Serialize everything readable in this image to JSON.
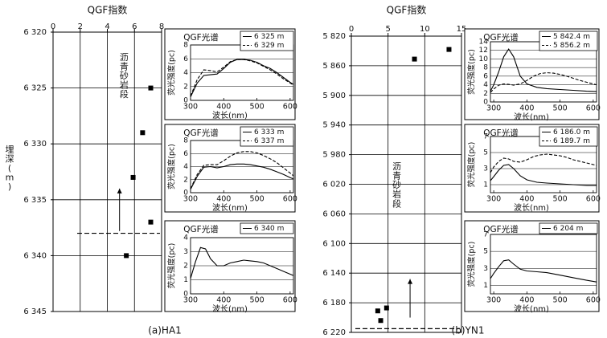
{
  "figure": {
    "ylabel_left": "埋深(m)",
    "annotation_arrow_label": "沥青砂岩段",
    "panels": [
      {
        "id": "HA1",
        "caption": "(a)HA1",
        "main": {
          "title": "QGF指数",
          "x_ticks": [
            "0",
            "2",
            "4",
            "6",
            "8"
          ],
          "x_range": [
            0,
            8
          ],
          "y_ticks": [
            "6 320",
            "6 325",
            "6 330",
            "6 335",
            "6 340",
            "6 345"
          ],
          "y_range": [
            6320,
            6345
          ],
          "points": [
            {
              "x": 7.2,
              "y": 6325.0
            },
            {
              "x": 6.6,
              "y": 6329.0
            },
            {
              "x": 5.9,
              "y": 6333.0
            },
            {
              "x": 7.2,
              "y": 6337.0
            },
            {
              "x": 5.4,
              "y": 6340.0
            }
          ],
          "dashed_depth": 6338.0,
          "arrow": {
            "x": 4.9,
            "from_depth": 6337.8,
            "to_depth": 6334.0
          }
        },
        "spectra": [
          {
            "title": "QGF光谱",
            "ylabel": "荧光强度(pc)",
            "xlabel": "波长(nm)",
            "x_ticks": [
              "300",
              "400",
              "500",
              "600"
            ],
            "x_range": [
              300,
              610
            ],
            "y_ticks": [
              "0",
              "2",
              "4",
              "6",
              "8"
            ],
            "y_range": [
              0,
              8
            ],
            "series": [
              {
                "name": "6 325 m",
                "dash": false,
                "x": [
                  300,
                  320,
                  340,
                  360,
                  380,
                  400,
                  420,
                  440,
                  460,
                  480,
                  500,
                  520,
                  540,
                  560,
                  580,
                  600,
                  610
                ],
                "y": [
                  0.5,
                  2.5,
                  3.6,
                  3.7,
                  3.8,
                  4.6,
                  5.5,
                  5.9,
                  5.9,
                  5.8,
                  5.5,
                  5.0,
                  4.6,
                  4.0,
                  3.3,
                  2.6,
                  2.3
                ]
              },
              {
                "name": "6 329 m",
                "dash": true,
                "x": [
                  300,
                  320,
                  340,
                  360,
                  380,
                  400,
                  420,
                  440,
                  460,
                  480,
                  500,
                  520,
                  540,
                  560,
                  580,
                  600,
                  610
                ],
                "y": [
                  0.6,
                  3.0,
                  4.4,
                  4.3,
                  4.1,
                  4.8,
                  5.6,
                  5.9,
                  5.9,
                  5.7,
                  5.4,
                  4.9,
                  4.4,
                  3.8,
                  3.1,
                  2.5,
                  2.2
                ]
              }
            ]
          },
          {
            "title": "QGF光谱",
            "ylabel": "荧光强度(pc)",
            "xlabel": "波长(nm)",
            "x_ticks": [
              "300",
              "400",
              "500",
              "600"
            ],
            "x_range": [
              300,
              610
            ],
            "y_ticks": [
              "0",
              "2",
              "4",
              "6",
              "8"
            ],
            "y_range": [
              0,
              8
            ],
            "series": [
              {
                "name": "6 333 m",
                "dash": false,
                "x": [
                  300,
                  320,
                  340,
                  360,
                  380,
                  400,
                  420,
                  440,
                  460,
                  480,
                  500,
                  520,
                  540,
                  560,
                  580,
                  600,
                  610
                ],
                "y": [
                  0.5,
                  2.5,
                  3.9,
                  4.0,
                  3.8,
                  4.0,
                  4.3,
                  4.4,
                  4.4,
                  4.3,
                  4.1,
                  3.9,
                  3.6,
                  3.2,
                  2.8,
                  2.3,
                  2.1
                ]
              },
              {
                "name": "6 337 m",
                "dash": true,
                "x": [
                  300,
                  320,
                  340,
                  360,
                  380,
                  400,
                  420,
                  440,
                  460,
                  480,
                  500,
                  520,
                  540,
                  560,
                  580,
                  600,
                  610
                ],
                "y": [
                  0.6,
                  2.8,
                  4.2,
                  4.3,
                  4.3,
                  4.9,
                  5.6,
                  6.1,
                  6.3,
                  6.3,
                  6.1,
                  5.7,
                  5.2,
                  4.6,
                  3.8,
                  3.0,
                  2.6
                ]
              }
            ]
          },
          {
            "title": "QGF光谱",
            "ylabel": "荧光强度(pc)",
            "xlabel": "波长(nm)",
            "x_ticks": [
              "300",
              "400",
              "500",
              "600"
            ],
            "x_range": [
              300,
              610
            ],
            "y_ticks": [
              "0",
              "1",
              "2",
              "3",
              "4"
            ],
            "y_range": [
              0,
              4
            ],
            "series": [
              {
                "name": "6 340 m",
                "dash": false,
                "x": [
                  300,
                  315,
                  330,
                  345,
                  360,
                  380,
                  400,
                  420,
                  440,
                  460,
                  480,
                  500,
                  520,
                  540,
                  560,
                  580,
                  600,
                  610
                ],
                "y": [
                  1.1,
                  2.3,
                  3.3,
                  3.2,
                  2.5,
                  2.0,
                  2.0,
                  2.2,
                  2.3,
                  2.4,
                  2.35,
                  2.3,
                  2.2,
                  2.0,
                  1.8,
                  1.6,
                  1.4,
                  1.3
                ]
              }
            ]
          }
        ]
      },
      {
        "id": "YN1",
        "caption": "(b)YN1",
        "main": {
          "title": "QGF指数",
          "x_ticks": [
            "0",
            "5",
            "10",
            "15"
          ],
          "x_range": [
            0,
            15
          ],
          "y_ticks": [
            "5 820",
            "5 860",
            "5 900",
            "5 940",
            "5 980",
            "6 020",
            "6 060",
            "6 100",
            "6 140",
            "6 180",
            "6 220"
          ],
          "y_range": [
            5820,
            6220
          ],
          "points": [
            {
              "x": 8.6,
              "y": 5851
            },
            {
              "x": 13.3,
              "y": 5838
            },
            {
              "x": 3.6,
              "y": 6191
            },
            {
              "x": 4.0,
              "y": 6204
            },
            {
              "x": 4.8,
              "y": 6187
            }
          ],
          "dashed_depth": 6215,
          "arrow": {
            "x": 8.0,
            "from_depth": 6200,
            "to_depth": 6148
          }
        },
        "spectra": [
          {
            "title": "QGF光谱",
            "ylabel": "荧光强度(pc)",
            "xlabel": "波长(nm)",
            "x_ticks": [
              "300",
              "400",
              "500",
              "600"
            ],
            "x_range": [
              290,
              610
            ],
            "y_ticks": [
              "0",
              "2",
              "4",
              "6",
              "8",
              "10",
              "12",
              "14"
            ],
            "y_range": [
              0,
              14
            ],
            "series": [
              {
                "name": "5 842.4 m",
                "dash": false,
                "x": [
                  290,
                  300,
                  315,
                  330,
                  345,
                  360,
                  380,
                  400,
                  430,
                  460,
                  500,
                  540,
                  580,
                  610
                ],
                "y": [
                  2.5,
                  4.0,
                  7.0,
                  10.5,
                  12.3,
                  10.5,
                  6.0,
                  4.2,
                  3.4,
                  3.1,
                  2.9,
                  2.7,
                  2.5,
                  2.4
                ]
              },
              {
                "name": "5 856.2 m",
                "dash": true,
                "x": [
                  290,
                  300,
                  315,
                  330,
                  345,
                  360,
                  380,
                  400,
                  420,
                  440,
                  460,
                  480,
                  500,
                  520,
                  540,
                  560,
                  580,
                  610
                ],
                "y": [
                  2.2,
                  3.0,
                  3.9,
                  4.2,
                  4.1,
                  3.9,
                  4.2,
                  5.0,
                  6.0,
                  6.6,
                  6.8,
                  6.7,
                  6.4,
                  6.0,
                  5.5,
                  5.0,
                  4.6,
                  4.0
                ]
              }
            ]
          },
          {
            "title": "QGF光谱",
            "ylabel": "荧光强度(pc)",
            "xlabel": "波长(nm)",
            "x_ticks": [
              "300",
              "400",
              "500",
              "600"
            ],
            "x_range": [
              290,
              610
            ],
            "y_ticks": [
              "1",
              "3",
              "5",
              "7"
            ],
            "y_range": [
              0,
              7
            ],
            "series": [
              {
                "name": "6 186.0 m",
                "dash": false,
                "x": [
                  290,
                  300,
                  315,
                  330,
                  345,
                  360,
                  380,
                  400,
                  430,
                  460,
                  500,
                  540,
                  580,
                  610
                ],
                "y": [
                  1.5,
                  2.0,
                  2.8,
                  3.4,
                  3.5,
                  3.0,
                  2.1,
                  1.6,
                  1.3,
                  1.2,
                  1.1,
                  1.0,
                  0.9,
                  0.9
                ]
              },
              {
                "name": "6 189.7 m",
                "dash": true,
                "x": [
                  290,
                  300,
                  315,
                  330,
                  345,
                  360,
                  380,
                  400,
                  420,
                  440,
                  460,
                  480,
                  500,
                  520,
                  540,
                  560,
                  580,
                  610
                ],
                "y": [
                  2.5,
                  3.2,
                  3.9,
                  4.3,
                  4.2,
                  3.9,
                  3.8,
                  4.1,
                  4.5,
                  4.7,
                  4.8,
                  4.7,
                  4.6,
                  4.4,
                  4.1,
                  3.9,
                  3.7,
                  3.4
                ]
              }
            ]
          },
          {
            "title": "QGF光谱",
            "ylabel": "荧光强度(pc)",
            "xlabel": "波长(nm)",
            "x_ticks": [
              "300",
              "400",
              "500",
              "600"
            ],
            "x_range": [
              290,
              610
            ],
            "y_ticks": [
              "1",
              "3",
              "5",
              "7"
            ],
            "y_range": [
              0,
              7
            ],
            "series": [
              {
                "name": "6 204 m",
                "dash": false,
                "x": [
                  290,
                  300,
                  315,
                  330,
                  345,
                  360,
                  380,
                  400,
                  430,
                  460,
                  500,
                  540,
                  580,
                  610
                ],
                "y": [
                  1.8,
                  2.4,
                  3.2,
                  3.9,
                  4.0,
                  3.5,
                  2.9,
                  2.7,
                  2.6,
                  2.5,
                  2.2,
                  1.9,
                  1.6,
                  1.4
                ]
              }
            ]
          }
        ]
      }
    ]
  }
}
